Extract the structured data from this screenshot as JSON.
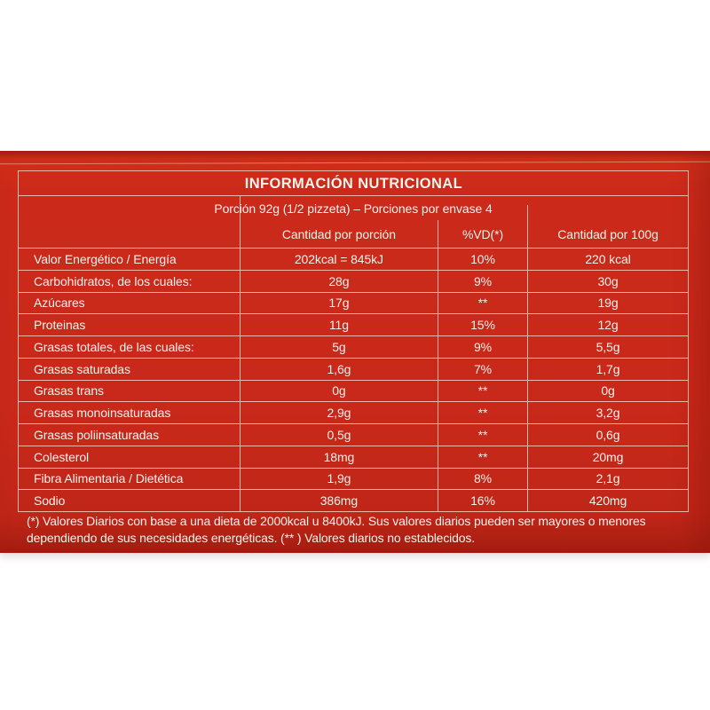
{
  "label": {
    "title": "INFORMACIÓN NUTRICIONAL",
    "portion_line": "Porción 92g (1/2 pizzeta) – Porciones por envase 4",
    "column_headers": {
      "nutrient": "",
      "per_portion": "Cantidad por porción",
      "daily_value": "%VD(*)",
      "per_100g": "Cantidad por 100g"
    },
    "rows": [
      {
        "nutrient": "Valor Energético / Energía",
        "per_portion": "202kcal = 845kJ",
        "daily_value": "10%",
        "per_100g": "220 kcal"
      },
      {
        "nutrient": "Carbohidratos, de los cuales:",
        "per_portion": "28g",
        "daily_value": "9%",
        "per_100g": "30g"
      },
      {
        "nutrient": "Azúcares",
        "per_portion": "17g",
        "daily_value": "**",
        "per_100g": "19g"
      },
      {
        "nutrient": "Proteinas",
        "per_portion": "11g",
        "daily_value": "15%",
        "per_100g": "12g"
      },
      {
        "nutrient": "Grasas totales, de las cuales:",
        "per_portion": "5g",
        "daily_value": "9%",
        "per_100g": "5,5g"
      },
      {
        "nutrient": "Grasas saturadas",
        "per_portion": "1,6g",
        "daily_value": "7%",
        "per_100g": "1,7g"
      },
      {
        "nutrient": "Grasas trans",
        "per_portion": "0g",
        "daily_value": "**",
        "per_100g": "0g"
      },
      {
        "nutrient": "Grasas monoinsaturadas",
        "per_portion": "2,9g",
        "daily_value": "**",
        "per_100g": "3,2g"
      },
      {
        "nutrient": "Grasas poliinsaturadas",
        "per_portion": "0,5g",
        "daily_value": "**",
        "per_100g": "0,6g"
      },
      {
        "nutrient": "Colesterol",
        "per_portion": "18mg",
        "daily_value": "**",
        "per_100g": "20mg"
      },
      {
        "nutrient": "Fibra Alimentaria / Dietética",
        "per_portion": "1,9g",
        "daily_value": "8%",
        "per_100g": "2,1g"
      },
      {
        "nutrient": "Sodio",
        "per_portion": "386mg",
        "daily_value": "16%",
        "per_100g": "420mg"
      }
    ],
    "footnote": {
      "line1": "(*) Valores Diarios con base a una dieta de 2000kcal u 8400kJ. Sus valores diarios pueden ser mayores o menores",
      "line2": "dependiendo de sus necesidades energéticas. (** ) Valores diarios no establecidos."
    },
    "colors": {
      "panel_red": "#c9291a",
      "panel_red_dark": "#a81f12",
      "text": "#fdf4ee",
      "grid_line": "#edb7a8"
    }
  }
}
